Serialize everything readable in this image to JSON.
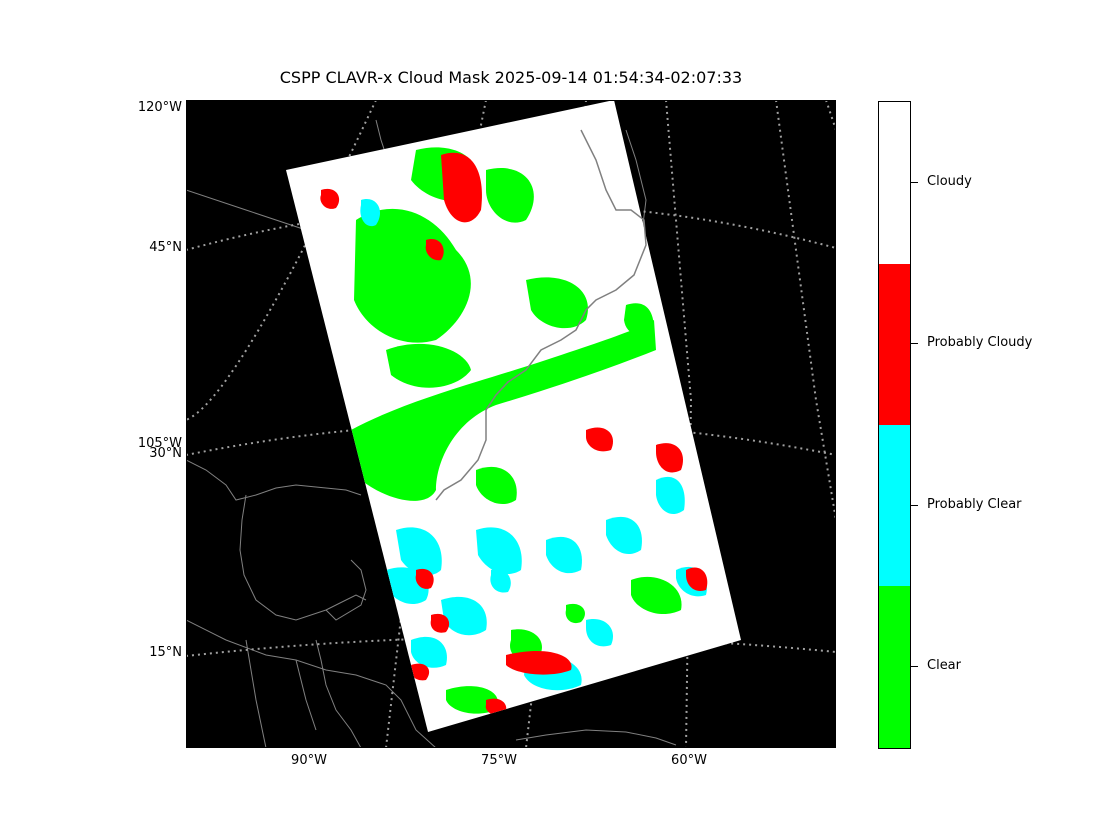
{
  "title": "CSPP CLAVR-x Cloud Mask 2025-09-14 01:54:34-02:07:33",
  "map": {
    "left_labels": [
      "120°W",
      "45°N",
      "105°W",
      "30°N",
      "15°N"
    ],
    "bottom_labels": [
      "90°W",
      "75°W",
      "60°W"
    ]
  },
  "legend": {
    "classes": [
      {
        "label": "Cloudy",
        "color": "#ffffff"
      },
      {
        "label": "Probably Cloudy",
        "color": "#ff0000"
      },
      {
        "label": "Probably Clear",
        "color": "#00ffff"
      },
      {
        "label": "Clear",
        "color": "#00ff00"
      }
    ]
  },
  "colors": {
    "background": "#000000",
    "coastline": "#808080",
    "gridline": "#a0a0a0"
  }
}
